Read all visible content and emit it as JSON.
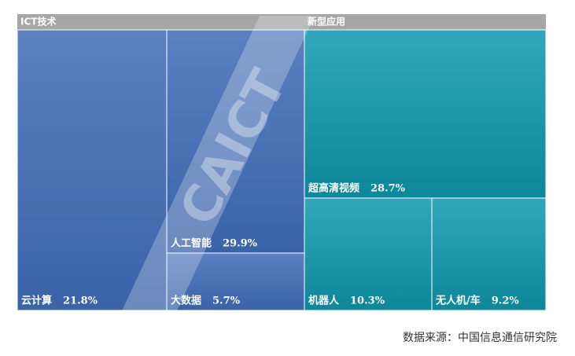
{
  "chart_data": {
    "type": "treemap",
    "groups": [
      {
        "name": "ICT技术",
        "color": "#4a70b5",
        "children": [
          {
            "name": "云计算",
            "value": 21.8,
            "value_label": "21.8%"
          },
          {
            "name": "人工智能",
            "value": 29.9,
            "value_label": "29.9%"
          },
          {
            "name": "大数据",
            "value": 5.7,
            "value_label": "5.7%"
          }
        ]
      },
      {
        "name": "新型应用",
        "color": "#1f97ab",
        "children": [
          {
            "name": "超高清视频",
            "value": 28.7,
            "value_label": "28.7%"
          },
          {
            "name": "机器人",
            "value": 10.3,
            "value_label": "10.3%"
          },
          {
            "name": "无人机/车",
            "value": 9.2,
            "value_label": "9.2%"
          }
        ]
      }
    ],
    "watermark": "CAICT",
    "source": "数据来源：中国信息通信研究院"
  }
}
